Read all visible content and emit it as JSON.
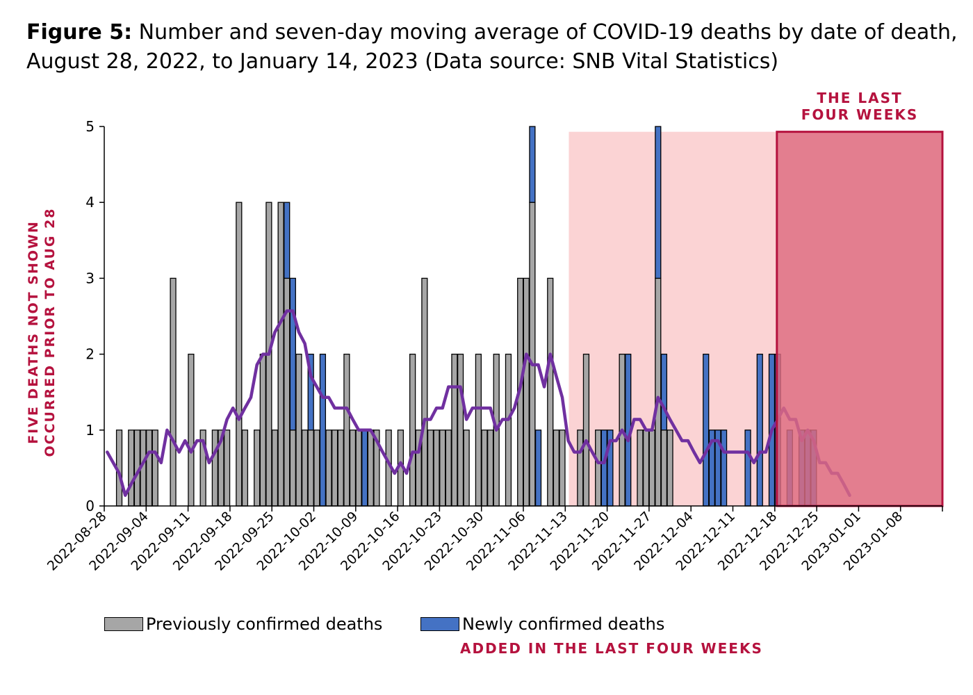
{
  "title": {
    "label": "Figure 5:",
    "text": "Number and seven-day moving average of COVID-19 deaths by date of death, August 28, 2022, to January 14, 2023 (Data source: SNB Vital Statistics)"
  },
  "annotations": {
    "last_four_weeks": [
      "THE LAST",
      "FOUR WEEKS"
    ],
    "side_note": [
      "FIVE DEATHS NOT SHOWN",
      "OCCURRED PRIOR TO AUG 28"
    ],
    "added_note": "ADDED IN THE LAST FOUR WEEKS"
  },
  "legend": {
    "previous": "Previously confirmed deaths",
    "newly": "Newly confirmed deaths"
  },
  "colors": {
    "previous_bar": "#a6a6a6",
    "new_bar": "#4472c4",
    "moving_average": "#7030a0",
    "annotation_red": "#b5123e",
    "light_region": "#fbd3d4",
    "dark_region": "#dd6b80"
  },
  "chart_data": {
    "type": "bar",
    "start_date": "2022-08-28",
    "end_date": "2023-01-14",
    "x_ticks": [
      "2022-08-28",
      "2022-09-04",
      "2022-09-11",
      "2022-09-18",
      "2022-09-25",
      "2022-10-02",
      "2022-10-09",
      "2022-10-16",
      "2022-10-23",
      "2022-10-30",
      "2022-11-06",
      "2022-11-13",
      "2022-11-20",
      "2022-11-27",
      "2022-12-04",
      "2022-12-11",
      "2022-12-18",
      "2022-12-25",
      "2023-01-01",
      "2023-01-08"
    ],
    "ylim": [
      0,
      5
    ],
    "y_ticks": [
      0,
      1,
      2,
      3,
      4,
      5
    ],
    "shaded_regions": [
      {
        "from": "2022-11-13",
        "to": "2023-01-14",
        "style": "light"
      },
      {
        "from": "2022-12-18",
        "to": "2023-01-14",
        "style": "dark"
      }
    ],
    "series": [
      {
        "name": "Previously confirmed deaths",
        "points": [
          [
            "2022-08-30",
            1
          ],
          [
            "2022-09-01",
            1
          ],
          [
            "2022-09-02",
            1
          ],
          [
            "2022-09-03",
            1
          ],
          [
            "2022-09-04",
            1
          ],
          [
            "2022-09-05",
            1
          ],
          [
            "2022-09-08",
            3
          ],
          [
            "2022-09-11",
            2
          ],
          [
            "2022-09-13",
            1
          ],
          [
            "2022-09-15",
            1
          ],
          [
            "2022-09-16",
            1
          ],
          [
            "2022-09-17",
            1
          ],
          [
            "2022-09-19",
            4
          ],
          [
            "2022-09-20",
            1
          ],
          [
            "2022-09-22",
            1
          ],
          [
            "2022-09-23",
            2
          ],
          [
            "2022-09-24",
            4
          ],
          [
            "2022-09-25",
            1
          ],
          [
            "2022-09-26",
            4
          ],
          [
            "2022-09-27",
            3
          ],
          [
            "2022-09-28",
            1
          ],
          [
            "2022-09-29",
            2
          ],
          [
            "2022-09-30",
            1
          ],
          [
            "2022-10-01",
            1
          ],
          [
            "2022-10-02",
            1
          ],
          [
            "2022-10-04",
            1
          ],
          [
            "2022-10-05",
            1
          ],
          [
            "2022-10-06",
            1
          ],
          [
            "2022-10-07",
            2
          ],
          [
            "2022-10-08",
            1
          ],
          [
            "2022-10-09",
            1
          ],
          [
            "2022-10-11",
            1
          ],
          [
            "2022-10-12",
            1
          ],
          [
            "2022-10-14",
            1
          ],
          [
            "2022-10-16",
            1
          ],
          [
            "2022-10-18",
            2
          ],
          [
            "2022-10-19",
            1
          ],
          [
            "2022-10-20",
            3
          ],
          [
            "2022-10-21",
            1
          ],
          [
            "2022-10-22",
            1
          ],
          [
            "2022-10-23",
            1
          ],
          [
            "2022-10-24",
            1
          ],
          [
            "2022-10-25",
            2
          ],
          [
            "2022-10-26",
            2
          ],
          [
            "2022-10-27",
            1
          ],
          [
            "2022-10-29",
            2
          ],
          [
            "2022-10-30",
            1
          ],
          [
            "2022-10-31",
            1
          ],
          [
            "2022-11-01",
            2
          ],
          [
            "2022-11-03",
            2
          ],
          [
            "2022-11-05",
            3
          ],
          [
            "2022-11-06",
            3
          ],
          [
            "2022-11-07",
            4
          ],
          [
            "2022-11-10",
            3
          ],
          [
            "2022-11-11",
            1
          ],
          [
            "2022-11-12",
            1
          ],
          [
            "2022-11-15",
            1
          ],
          [
            "2022-11-16",
            2
          ],
          [
            "2022-11-18",
            1
          ],
          [
            "2022-11-22",
            2
          ],
          [
            "2022-11-25",
            1
          ],
          [
            "2022-11-26",
            1
          ],
          [
            "2022-11-27",
            1
          ],
          [
            "2022-11-28",
            3
          ],
          [
            "2022-11-29",
            1
          ],
          [
            "2022-11-30",
            1
          ]
        ]
      },
      {
        "name": "Newly confirmed deaths",
        "points": [
          [
            "2022-09-27",
            1
          ],
          [
            "2022-09-28",
            2
          ],
          [
            "2022-10-01",
            1
          ],
          [
            "2022-10-03",
            2
          ],
          [
            "2022-10-10",
            1
          ],
          [
            "2022-11-07",
            1
          ],
          [
            "2022-11-08",
            1
          ],
          [
            "2022-11-19",
            1
          ],
          [
            "2022-11-20",
            1
          ],
          [
            "2022-11-23",
            2
          ],
          [
            "2022-11-28",
            2
          ],
          [
            "2022-11-29",
            1
          ],
          [
            "2022-12-06",
            2
          ],
          [
            "2022-12-07",
            1
          ],
          [
            "2022-12-08",
            1
          ],
          [
            "2022-12-09",
            1
          ],
          [
            "2022-12-13",
            1
          ],
          [
            "2022-12-15",
            2
          ],
          [
            "2022-12-17",
            2
          ],
          [
            "2022-12-18",
            2
          ],
          [
            "2022-12-20",
            1
          ],
          [
            "2022-12-22",
            1
          ],
          [
            "2022-12-23",
            1
          ],
          [
            "2022-12-24",
            1
          ]
        ]
      },
      {
        "name": "Seven-day moving average",
        "points": [
          [
            "2022-08-28",
            0.71
          ],
          [
            "2022-08-29",
            0.57
          ],
          [
            "2022-08-30",
            0.43
          ],
          [
            "2022-08-31",
            0.14
          ],
          [
            "2022-09-01",
            0.29
          ],
          [
            "2022-09-02",
            0.43
          ],
          [
            "2022-09-03",
            0.57
          ],
          [
            "2022-09-04",
            0.71
          ],
          [
            "2022-09-05",
            0.71
          ],
          [
            "2022-09-06",
            0.57
          ],
          [
            "2022-09-07",
            1.0
          ],
          [
            "2022-09-08",
            0.86
          ],
          [
            "2022-09-09",
            0.71
          ],
          [
            "2022-09-10",
            0.86
          ],
          [
            "2022-09-11",
            0.71
          ],
          [
            "2022-09-12",
            0.86
          ],
          [
            "2022-09-13",
            0.86
          ],
          [
            "2022-09-14",
            0.57
          ],
          [
            "2022-09-15",
            0.71
          ],
          [
            "2022-09-16",
            0.86
          ],
          [
            "2022-09-17",
            1.14
          ],
          [
            "2022-09-18",
            1.29
          ],
          [
            "2022-09-19",
            1.14
          ],
          [
            "2022-09-20",
            1.29
          ],
          [
            "2022-09-21",
            1.43
          ],
          [
            "2022-09-22",
            1.86
          ],
          [
            "2022-09-23",
            2.0
          ],
          [
            "2022-09-24",
            2.0
          ],
          [
            "2022-09-25",
            2.29
          ],
          [
            "2022-09-26",
            2.43
          ],
          [
            "2022-09-27",
            2.57
          ],
          [
            "2022-09-28",
            2.57
          ],
          [
            "2022-09-29",
            2.29
          ],
          [
            "2022-09-30",
            2.14
          ],
          [
            "2022-10-01",
            1.71
          ],
          [
            "2022-10-02",
            1.57
          ],
          [
            "2022-10-03",
            1.43
          ],
          [
            "2022-10-04",
            1.43
          ],
          [
            "2022-10-05",
            1.29
          ],
          [
            "2022-10-06",
            1.29
          ],
          [
            "2022-10-07",
            1.29
          ],
          [
            "2022-10-08",
            1.14
          ],
          [
            "2022-10-09",
            1.0
          ],
          [
            "2022-10-10",
            1.0
          ],
          [
            "2022-10-11",
            1.0
          ],
          [
            "2022-10-12",
            0.86
          ],
          [
            "2022-10-13",
            0.71
          ],
          [
            "2022-10-14",
            0.57
          ],
          [
            "2022-10-15",
            0.43
          ],
          [
            "2022-10-16",
            0.57
          ],
          [
            "2022-10-17",
            0.43
          ],
          [
            "2022-10-18",
            0.71
          ],
          [
            "2022-10-19",
            0.71
          ],
          [
            "2022-10-20",
            1.14
          ],
          [
            "2022-10-21",
            1.14
          ],
          [
            "2022-10-22",
            1.29
          ],
          [
            "2022-10-23",
            1.29
          ],
          [
            "2022-10-24",
            1.57
          ],
          [
            "2022-10-25",
            1.57
          ],
          [
            "2022-10-26",
            1.57
          ],
          [
            "2022-10-27",
            1.14
          ],
          [
            "2022-10-28",
            1.29
          ],
          [
            "2022-10-29",
            1.29
          ],
          [
            "2022-10-30",
            1.29
          ],
          [
            "2022-10-31",
            1.29
          ],
          [
            "2022-11-01",
            1.0
          ],
          [
            "2022-11-02",
            1.14
          ],
          [
            "2022-11-03",
            1.14
          ],
          [
            "2022-11-04",
            1.29
          ],
          [
            "2022-11-05",
            1.57
          ],
          [
            "2022-11-06",
            2.0
          ],
          [
            "2022-11-07",
            1.86
          ],
          [
            "2022-11-08",
            1.86
          ],
          [
            "2022-11-09",
            1.57
          ],
          [
            "2022-11-10",
            2.0
          ],
          [
            "2022-11-11",
            1.71
          ],
          [
            "2022-11-12",
            1.43
          ],
          [
            "2022-11-13",
            0.86
          ],
          [
            "2022-11-14",
            0.71
          ],
          [
            "2022-11-15",
            0.71
          ],
          [
            "2022-11-16",
            0.86
          ],
          [
            "2022-11-17",
            0.71
          ],
          [
            "2022-11-18",
            0.57
          ],
          [
            "2022-11-19",
            0.57
          ],
          [
            "2022-11-20",
            0.86
          ],
          [
            "2022-11-21",
            0.86
          ],
          [
            "2022-11-22",
            1.0
          ],
          [
            "2022-11-23",
            0.86
          ],
          [
            "2022-11-24",
            1.14
          ],
          [
            "2022-11-25",
            1.14
          ],
          [
            "2022-11-26",
            1.0
          ],
          [
            "2022-11-27",
            1.0
          ],
          [
            "2022-11-28",
            1.43
          ],
          [
            "2022-11-29",
            1.29
          ],
          [
            "2022-11-30",
            1.14
          ],
          [
            "2022-12-01",
            1.0
          ],
          [
            "2022-12-02",
            0.86
          ],
          [
            "2022-12-03",
            0.86
          ],
          [
            "2022-12-04",
            0.71
          ],
          [
            "2022-12-05",
            0.57
          ],
          [
            "2022-12-06",
            0.71
          ],
          [
            "2022-12-07",
            0.86
          ],
          [
            "2022-12-08",
            0.86
          ],
          [
            "2022-12-09",
            0.71
          ],
          [
            "2022-12-10",
            0.71
          ],
          [
            "2022-12-11",
            0.71
          ],
          [
            "2022-12-12",
            0.71
          ],
          [
            "2022-12-13",
            0.71
          ],
          [
            "2022-12-14",
            0.57
          ],
          [
            "2022-12-15",
            0.71
          ],
          [
            "2022-12-16",
            0.71
          ],
          [
            "2022-12-17",
            1.0
          ],
          [
            "2022-12-18",
            1.14
          ],
          [
            "2022-12-19",
            1.29
          ],
          [
            "2022-12-20",
            1.14
          ],
          [
            "2022-12-21",
            1.14
          ],
          [
            "2022-12-22",
            0.86
          ],
          [
            "2022-12-23",
            1.0
          ],
          [
            "2022-12-24",
            0.86
          ],
          [
            "2022-12-25",
            0.57
          ],
          [
            "2022-12-26",
            0.57
          ],
          [
            "2022-12-27",
            0.43
          ],
          [
            "2022-12-28",
            0.43
          ],
          [
            "2022-12-29",
            0.29
          ],
          [
            "2022-12-30",
            0.14
          ]
        ]
      }
    ]
  }
}
